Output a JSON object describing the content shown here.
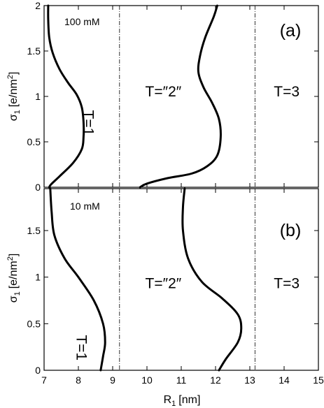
{
  "chart_data": [
    {
      "type": "line",
      "panel": "(a)",
      "concentration": "100 mM",
      "xlabel_main": "R",
      "xlabel_sub": "1",
      "xlabel_unit": "[nm]",
      "ylabel": "σ1 [e/nm2]",
      "ylabel_main": "σ",
      "ylabel_sub": "1",
      "ylabel_unit_pre": "[e/nm",
      "ylabel_unit_sup": "2",
      "ylabel_unit_post": "]",
      "xlim": [
        7,
        15
      ],
      "ylim": [
        0,
        2
      ],
      "yticks": [
        "0",
        "0.5",
        "1",
        "1.5",
        "2"
      ],
      "xticks": [],
      "dividers_x": [
        9.2,
        13.15
      ],
      "regions": [
        {
          "text": "T=1",
          "x": 8.15,
          "y": 0.85,
          "rotate": 90
        },
        {
          "text": "T=″2″",
          "x": 9.95,
          "y": 1.0,
          "rotate": 0
        },
        {
          "text": "T=3",
          "x": 13.7,
          "y": 1.0,
          "rotate": 0
        }
      ],
      "series": [
        {
          "values": [
            [
              7.15,
              0.0
            ],
            [
              7.2,
              0.03
            ],
            [
              7.45,
              0.12
            ],
            [
              7.85,
              0.27
            ],
            [
              8.1,
              0.42
            ],
            [
              8.15,
              0.55
            ],
            [
              8.15,
              0.72
            ],
            [
              8.1,
              0.88
            ],
            [
              7.95,
              1.02
            ],
            [
              7.7,
              1.15
            ],
            [
              7.45,
              1.3
            ],
            [
              7.25,
              1.48
            ],
            [
              7.15,
              1.65
            ],
            [
              7.12,
              1.85
            ],
            [
              7.12,
              2.0
            ]
          ]
        },
        {
          "values": [
            [
              9.8,
              0.0
            ],
            [
              10.0,
              0.04
            ],
            [
              10.6,
              0.1
            ],
            [
              11.3,
              0.15
            ],
            [
              11.75,
              0.23
            ],
            [
              12.05,
              0.35
            ],
            [
              12.15,
              0.55
            ],
            [
              12.1,
              0.75
            ],
            [
              11.9,
              0.93
            ],
            [
              11.65,
              1.1
            ],
            [
              11.5,
              1.27
            ],
            [
              11.55,
              1.45
            ],
            [
              11.7,
              1.65
            ],
            [
              11.95,
              1.88
            ],
            [
              12.05,
              2.0
            ]
          ]
        }
      ]
    },
    {
      "type": "line",
      "panel": "(b)",
      "concentration": "10 mM",
      "xlabel_main": "R",
      "xlabel_sub": "1",
      "xlabel_unit": "[nm]",
      "ylabel": "σ1 [e/nm2]",
      "ylabel_main": "σ",
      "ylabel_sub": "1",
      "ylabel_unit_pre": "[e/nm",
      "ylabel_unit_sup": "2",
      "ylabel_unit_post": "]",
      "xlim": [
        7,
        15
      ],
      "ylim": [
        0,
        1.95
      ],
      "yticks": [
        "0",
        "0.5",
        "1",
        "1.5"
      ],
      "xticks": [
        "7",
        "8",
        "9",
        "10",
        "11",
        "12",
        "13",
        "14",
        "15"
      ],
      "dividers_x": [
        9.2,
        13.15
      ],
      "regions": [
        {
          "text": "T=1",
          "x": 7.95,
          "y": 0.38,
          "rotate": 90
        },
        {
          "text": "T=″2″",
          "x": 9.95,
          "y": 0.88,
          "rotate": 0
        },
        {
          "text": "T=3",
          "x": 13.7,
          "y": 0.88,
          "rotate": 0
        }
      ],
      "series": [
        {
          "values": [
            [
              8.65,
              0.0
            ],
            [
              8.72,
              0.15
            ],
            [
              8.78,
              0.3
            ],
            [
              8.72,
              0.5
            ],
            [
              8.45,
              0.75
            ],
            [
              8.0,
              1.0
            ],
            [
              7.6,
              1.2
            ],
            [
              7.3,
              1.45
            ],
            [
              7.22,
              1.7
            ],
            [
              7.18,
              1.95
            ]
          ]
        },
        {
          "values": [
            [
              12.1,
              0.0
            ],
            [
              12.3,
              0.12
            ],
            [
              12.65,
              0.3
            ],
            [
              12.75,
              0.45
            ],
            [
              12.65,
              0.6
            ],
            [
              12.2,
              0.77
            ],
            [
              11.6,
              0.95
            ],
            [
              11.2,
              1.2
            ],
            [
              11.05,
              1.5
            ],
            [
              11.05,
              1.75
            ],
            [
              11.1,
              1.95
            ]
          ]
        }
      ]
    }
  ]
}
